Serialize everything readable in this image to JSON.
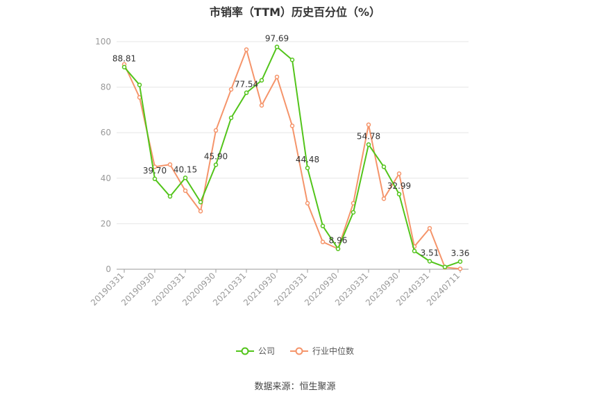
{
  "chart_data": {
    "type": "line",
    "title": "市销率（TTM）历史百分位（%）",
    "xlabel": "",
    "ylabel": "",
    "ylim": [
      0,
      100
    ],
    "yticks": [
      0,
      20,
      40,
      60,
      80,
      100
    ],
    "grid": true,
    "legend_position": "bottom",
    "x": [
      "20190331",
      "20190630",
      "20190930",
      "20191231",
      "20200331",
      "20200630",
      "20200930",
      "20201231",
      "20210331",
      "20210630",
      "20210930",
      "20211231",
      "20220331",
      "20220630",
      "20220930",
      "20221231",
      "20230331",
      "20230630",
      "20230930",
      "20231231",
      "20240331",
      "20240630",
      "20240711"
    ],
    "x_tick_labels": [
      "20190331",
      "20190930",
      "20200331",
      "20200930",
      "20210331",
      "20210930",
      "20220331",
      "20220930",
      "20230331",
      "20230930",
      "20240331",
      "20240711"
    ],
    "series": [
      {
        "name": "公司",
        "color": "#52c41a",
        "values": [
          88.81,
          81,
          39.7,
          32,
          40.15,
          29.5,
          45.9,
          66.5,
          77.54,
          83,
          97.69,
          92,
          44.48,
          19,
          8.96,
          25,
          54.78,
          45,
          32.99,
          8,
          3.51,
          1,
          3.36
        ],
        "labels": {
          "0": "88.81",
          "2": "39.70",
          "4": "40.15",
          "6": "45.90",
          "8": "77.54",
          "10": "97.69",
          "12": "44.48",
          "14": "8.96",
          "16": "54.78",
          "18": "32.99",
          "20": "3.51",
          "22": "3.36"
        }
      },
      {
        "name": "行业中位数",
        "color": "#f5946a",
        "values": [
          90,
          75.5,
          45,
          46,
          34.5,
          25.5,
          61,
          79,
          96.5,
          72,
          84.5,
          63,
          29,
          12,
          9,
          29,
          63.5,
          31,
          42,
          10,
          18,
          0.8,
          0.2
        ]
      }
    ],
    "source": "数据来源：恒生聚源"
  }
}
